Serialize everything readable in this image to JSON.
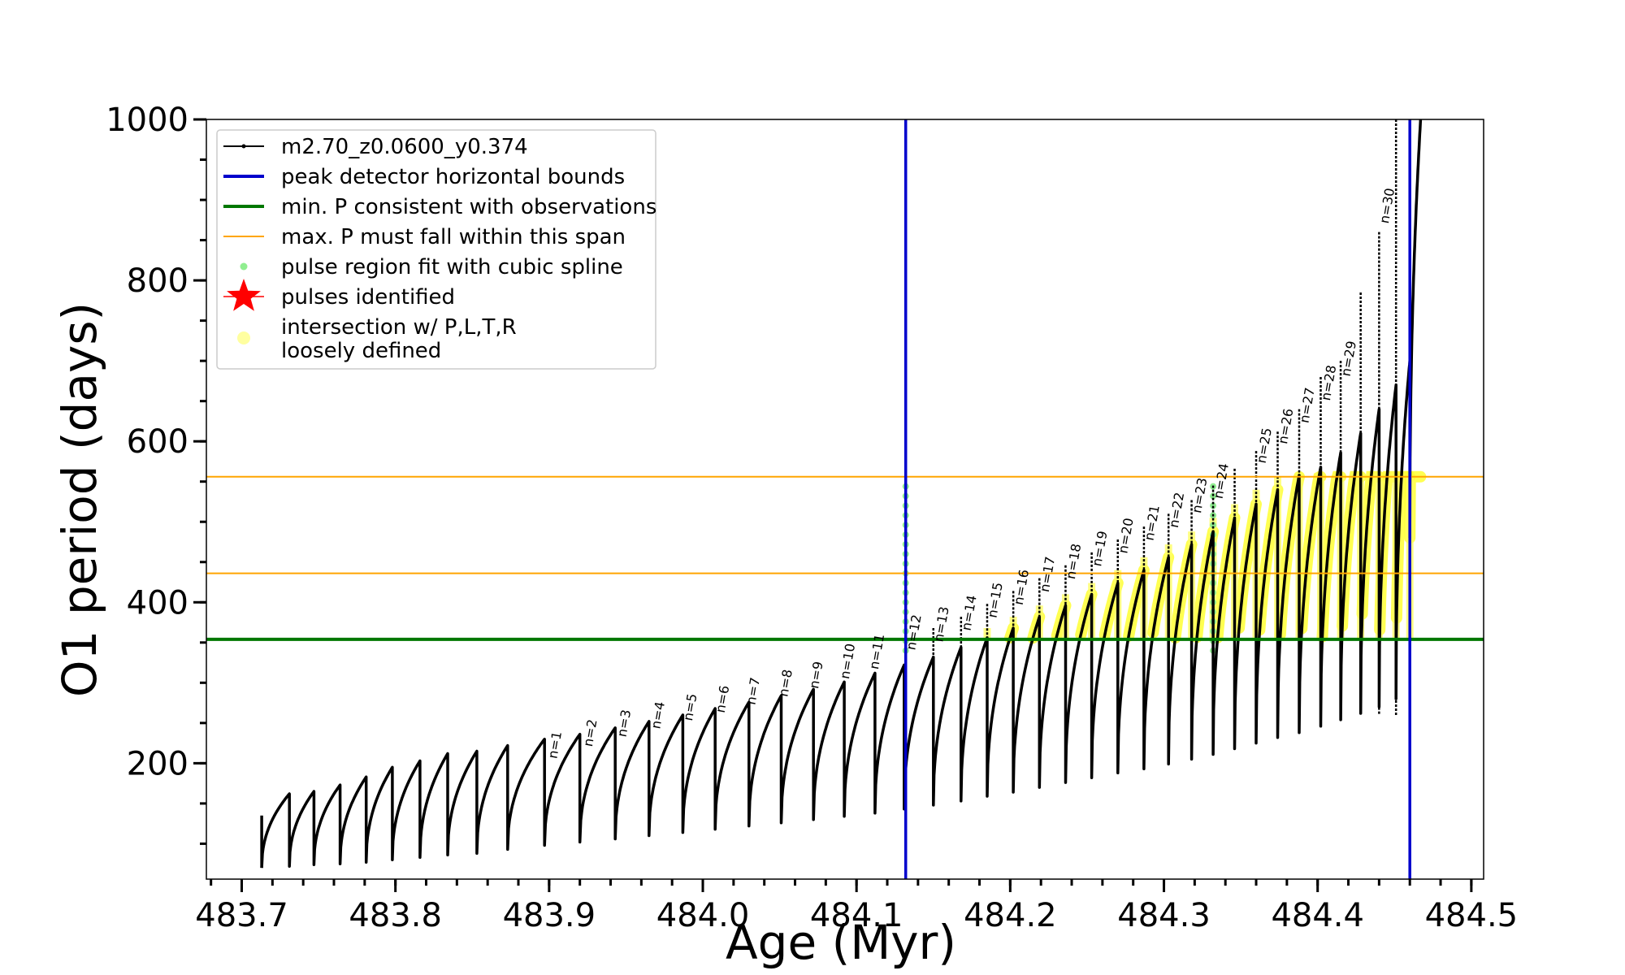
{
  "chart_data": {
    "type": "line",
    "xlabel": "Age (Myr)",
    "ylabel": "O1 period (days)",
    "xlim": [
      483.677,
      484.508
    ],
    "ylim": [
      56,
      1000
    ],
    "x_ticks": [
      483.7,
      483.8,
      483.9,
      484.0,
      484.1,
      484.2,
      484.3,
      484.4,
      484.5
    ],
    "x_tick_labels": [
      "483.7",
      "483.8",
      "483.9",
      "484.0",
      "484.1",
      "484.2",
      "484.3",
      "484.4",
      "484.5"
    ],
    "y_ticks": [
      200,
      400,
      600,
      800,
      1000
    ],
    "y_tick_labels": [
      "200",
      "400",
      "600",
      "800",
      "1000"
    ],
    "y_minor_step": 50,
    "x_minor_step": 0.02,
    "legend": {
      "placement": "upper left",
      "entries": [
        {
          "label": "m2.70_z0.0600_y0.374",
          "style": "line-dots",
          "color": "#000000"
        },
        {
          "label": "peak detector horizontal bounds",
          "style": "line",
          "color": "#0000cc"
        },
        {
          "label": "min. P consistent with observations",
          "style": "line",
          "color": "#007700"
        },
        {
          "label": "max. P must fall within this span",
          "style": "thin-line",
          "color": "#ffa500"
        },
        {
          "label": "pulse region fit with cubic spline",
          "style": "small-dot",
          "color": "#90ee90"
        },
        {
          "label": "pulses identified",
          "style": "star",
          "color": "#ff0000"
        },
        {
          "label": "intersection w/ P,L,T,R",
          "label2": "loosely defined",
          "style": "big-dot",
          "color": "#ffffa0"
        }
      ]
    },
    "vertical_lines": [
      {
        "name": "peak detector horizontal bounds",
        "x": 484.132,
        "color": "#0000cc"
      },
      {
        "name": "peak detector horizontal bounds",
        "x": 484.46,
        "color": "#0000cc"
      }
    ],
    "horizontal_lines": [
      {
        "name": "min. P consistent with observations",
        "y": 354,
        "color": "#007700"
      },
      {
        "name": "max. P must fall within this span",
        "y": 436,
        "color": "#ffa500"
      },
      {
        "name": "max. P must fall within this span",
        "y": 556,
        "color": "#ffa500"
      }
    ],
    "series": [
      {
        "name": "m2.70_z0.0600_y0.374",
        "color": "#000000",
        "cycles": [
          {
            "x0": 483.713,
            "x1": 483.731,
            "ymin": 70,
            "ymax": 162
          },
          {
            "x0": 483.731,
            "x1": 483.747,
            "ymin": 72,
            "ymax": 165
          },
          {
            "x0": 483.747,
            "x1": 483.764,
            "ymin": 74,
            "ymax": 173
          },
          {
            "x0": 483.764,
            "x1": 483.781,
            "ymin": 75,
            "ymax": 183
          },
          {
            "x0": 483.781,
            "x1": 483.798,
            "ymin": 77,
            "ymax": 195
          },
          {
            "x0": 483.798,
            "x1": 483.816,
            "ymin": 80,
            "ymax": 203
          },
          {
            "x0": 483.816,
            "x1": 483.834,
            "ymin": 83,
            "ymax": 212
          },
          {
            "x0": 483.834,
            "x1": 483.853,
            "ymin": 86,
            "ymax": 215
          },
          {
            "x0": 483.853,
            "x1": 483.873,
            "ymin": 88,
            "ymax": 222
          },
          {
            "x0": 483.873,
            "x1": 483.897,
            "ymin": 93,
            "ymax": 230
          },
          {
            "x0": 483.897,
            "x1": 483.92,
            "ymin": 98,
            "ymax": 236
          },
          {
            "x0": 483.92,
            "x1": 483.943,
            "ymin": 102,
            "ymax": 244
          },
          {
            "x0": 483.943,
            "x1": 483.965,
            "ymin": 106,
            "ymax": 252
          },
          {
            "x0": 483.965,
            "x1": 483.987,
            "ymin": 110,
            "ymax": 260
          },
          {
            "x0": 483.987,
            "x1": 484.008,
            "ymin": 114,
            "ymax": 268
          },
          {
            "x0": 484.008,
            "x1": 484.03,
            "ymin": 118,
            "ymax": 276
          },
          {
            "x0": 484.03,
            "x1": 484.051,
            "ymin": 122,
            "ymax": 284
          },
          {
            "x0": 484.051,
            "x1": 484.072,
            "ymin": 126,
            "ymax": 292
          },
          {
            "x0": 484.072,
            "x1": 484.092,
            "ymin": 130,
            "ymax": 301
          },
          {
            "x0": 484.092,
            "x1": 484.112,
            "ymin": 134,
            "ymax": 312
          },
          {
            "x0": 484.112,
            "x1": 484.131,
            "ymin": 138,
            "ymax": 322
          },
          {
            "x0": 484.131,
            "x1": 484.15,
            "ymin": 143,
            "ymax": 332
          },
          {
            "x0": 484.15,
            "x1": 484.168,
            "ymin": 148,
            "ymax": 344
          },
          {
            "x0": 484.168,
            "x1": 484.185,
            "ymin": 153,
            "ymax": 356
          },
          {
            "x0": 484.185,
            "x1": 484.202,
            "ymin": 159,
            "ymax": 368
          },
          {
            "x0": 484.202,
            "x1": 484.219,
            "ymin": 164,
            "ymax": 382
          },
          {
            "x0": 484.219,
            "x1": 484.236,
            "ymin": 170,
            "ymax": 396
          },
          {
            "x0": 484.236,
            "x1": 484.253,
            "ymin": 176,
            "ymax": 410
          },
          {
            "x0": 484.253,
            "x1": 484.27,
            "ymin": 182,
            "ymax": 424
          },
          {
            "x0": 484.27,
            "x1": 484.287,
            "ymin": 188,
            "ymax": 440
          },
          {
            "x0": 484.287,
            "x1": 484.303,
            "ymin": 193,
            "ymax": 456
          },
          {
            "x0": 484.303,
            "x1": 484.318,
            "ymin": 199,
            "ymax": 472
          },
          {
            "x0": 484.318,
            "x1": 484.332,
            "ymin": 205,
            "ymax": 488
          },
          {
            "x0": 484.332,
            "x1": 484.346,
            "ymin": 211,
            "ymax": 505
          },
          {
            "x0": 484.346,
            "x1": 484.36,
            "ymin": 218,
            "ymax": 522
          },
          {
            "x0": 484.36,
            "x1": 484.374,
            "ymin": 225,
            "ymax": 540
          },
          {
            "x0": 484.374,
            "x1": 484.388,
            "ymin": 232,
            "ymax": 558
          },
          {
            "x0": 484.388,
            "x1": 484.402,
            "ymin": 238,
            "ymax": 568
          },
          {
            "x0": 484.402,
            "x1": 484.415,
            "ymin": 246,
            "ymax": 586
          },
          {
            "x0": 484.415,
            "x1": 484.428,
            "ymin": 254,
            "ymax": 610
          },
          {
            "x0": 484.428,
            "x1": 484.44,
            "ymin": 262,
            "ymax": 640
          },
          {
            "x0": 484.44,
            "x1": 484.451,
            "ymin": 270,
            "ymax": 670
          },
          {
            "x0": 484.451,
            "x1": 484.46,
            "ymin": 280,
            "ymax": 700
          },
          {
            "x0": 484.46,
            "x1": 484.467,
            "ymin": 480,
            "ymax": 1000
          }
        ],
        "spikes": [
          {
            "x": 484.132,
            "y": 360
          },
          {
            "x": 484.15,
            "y": 368
          },
          {
            "x": 484.168,
            "y": 382
          },
          {
            "x": 484.185,
            "y": 398
          },
          {
            "x": 484.202,
            "y": 414
          },
          {
            "x": 484.219,
            "y": 430
          },
          {
            "x": 484.236,
            "y": 446
          },
          {
            "x": 484.253,
            "y": 462
          },
          {
            "x": 484.27,
            "y": 478
          },
          {
            "x": 484.287,
            "y": 494
          },
          {
            "x": 484.303,
            "y": 510
          },
          {
            "x": 484.318,
            "y": 527
          },
          {
            "x": 484.332,
            "y": 545
          },
          {
            "x": 484.346,
            "y": 566
          },
          {
            "x": 484.36,
            "y": 588
          },
          {
            "x": 484.374,
            "y": 612
          },
          {
            "x": 484.388,
            "y": 640
          },
          {
            "x": 484.402,
            "y": 680
          },
          {
            "x": 484.415,
            "y": 700
          },
          {
            "x": 484.428,
            "y": 785
          },
          {
            "x": 484.44,
            "y": 860
          },
          {
            "x": 484.451,
            "y": 1000
          }
        ]
      }
    ],
    "pulse_labels": [
      {
        "label": "n=1",
        "x": 483.905,
        "y": 205
      },
      {
        "label": "n=2",
        "x": 483.928,
        "y": 220
      },
      {
        "label": "n=3",
        "x": 483.95,
        "y": 232
      },
      {
        "label": "n=4",
        "x": 483.972,
        "y": 242
      },
      {
        "label": "n=5",
        "x": 483.993,
        "y": 252
      },
      {
        "label": "n=6",
        "x": 484.014,
        "y": 262
      },
      {
        "label": "n=7",
        "x": 484.034,
        "y": 272
      },
      {
        "label": "n=8",
        "x": 484.055,
        "y": 282
      },
      {
        "label": "n=9",
        "x": 484.075,
        "y": 292
      },
      {
        "label": "n=10",
        "x": 484.095,
        "y": 304
      },
      {
        "label": "n=11",
        "x": 484.114,
        "y": 316
      },
      {
        "label": "n=12",
        "x": 484.138,
        "y": 340
      },
      {
        "label": "n=13",
        "x": 484.156,
        "y": 350
      },
      {
        "label": "n=14",
        "x": 484.174,
        "y": 364
      },
      {
        "label": "n=15",
        "x": 484.191,
        "y": 380
      },
      {
        "label": "n=16",
        "x": 484.208,
        "y": 396
      },
      {
        "label": "n=17",
        "x": 484.225,
        "y": 412
      },
      {
        "label": "n=18",
        "x": 484.242,
        "y": 428
      },
      {
        "label": "n=19",
        "x": 484.259,
        "y": 444
      },
      {
        "label": "n=20",
        "x": 484.276,
        "y": 460
      },
      {
        "label": "n=21",
        "x": 484.293,
        "y": 476
      },
      {
        "label": "n=22",
        "x": 484.309,
        "y": 492
      },
      {
        "label": "n=23",
        "x": 484.324,
        "y": 510
      },
      {
        "label": "n=24",
        "x": 484.338,
        "y": 528
      },
      {
        "label": "n=25",
        "x": 484.366,
        "y": 572
      },
      {
        "label": "n=26",
        "x": 484.38,
        "y": 596
      },
      {
        "label": "n=27",
        "x": 484.394,
        "y": 622
      },
      {
        "label": "n=28",
        "x": 484.408,
        "y": 650
      },
      {
        "label": "n=29",
        "x": 484.421,
        "y": 680
      },
      {
        "label": "n=30",
        "x": 484.446,
        "y": 870
      }
    ]
  }
}
